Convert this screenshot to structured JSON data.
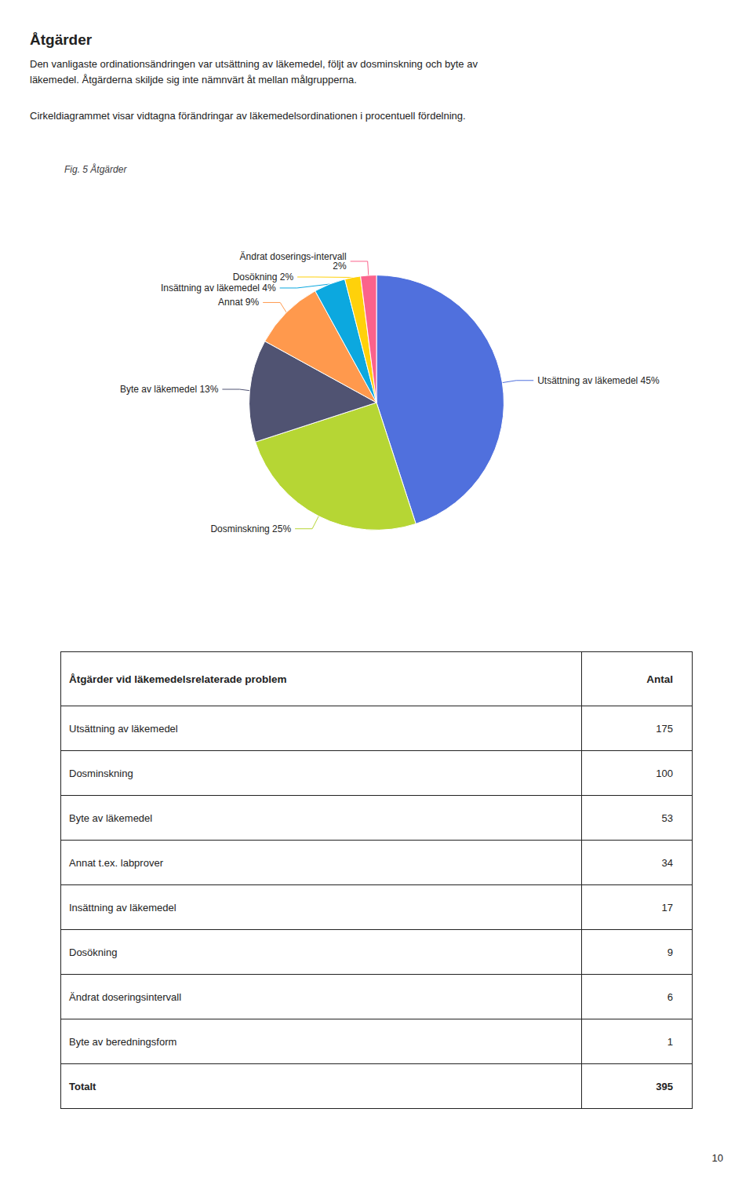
{
  "title": "Åtgärder",
  "text": [
    "Den vanligaste ordinationsändringen var utsättning av läkemedel, följt av dosminskning och byte av",
    "läkemedel. Åtgärderna skiljde sig inte nämnvärt åt mellan målgrupperna.",
    "Cirkeldiagrammet visar vidtagna förändringar av läkemedelsordinationen i procentuell fördelning."
  ],
  "chart_data": [
    {
      "type": "pie",
      "title": "Fig. 5 Åtgärder",
      "categories": [
        "Utsättning av läkemedel 45%",
        "Dosminskning 25%",
        "Byte av läkemedel 13%",
        "Annat 9%",
        "Insättning av läkemedel 4%",
        "Dosökning 2%",
        "Ändrat doserings-intervall\n2%"
      ],
      "values": [
        45,
        25,
        13,
        9,
        4,
        2,
        2
      ]
    },
    {
      "type": "table",
      "columns": [
        "Åtgärder vid läkemedelsrelaterade problem",
        "Antal"
      ],
      "rows": [
        [
          "Utsättning av läkemedel",
          175
        ],
        [
          "Dosminskning",
          100
        ],
        [
          "Byte av läkemedel",
          53
        ],
        [
          "Annat t.ex. labprover",
          34
        ],
        [
          "Insättning av läkemedel",
          17
        ],
        [
          "Dosökning",
          9
        ],
        [
          "Ändrat doseringsintervall",
          6
        ],
        [
          "Byte av beredningsform",
          1
        ]
      ],
      "footer": [
        "Totalt",
        395
      ]
    }
  ],
  "page_number": "10"
}
